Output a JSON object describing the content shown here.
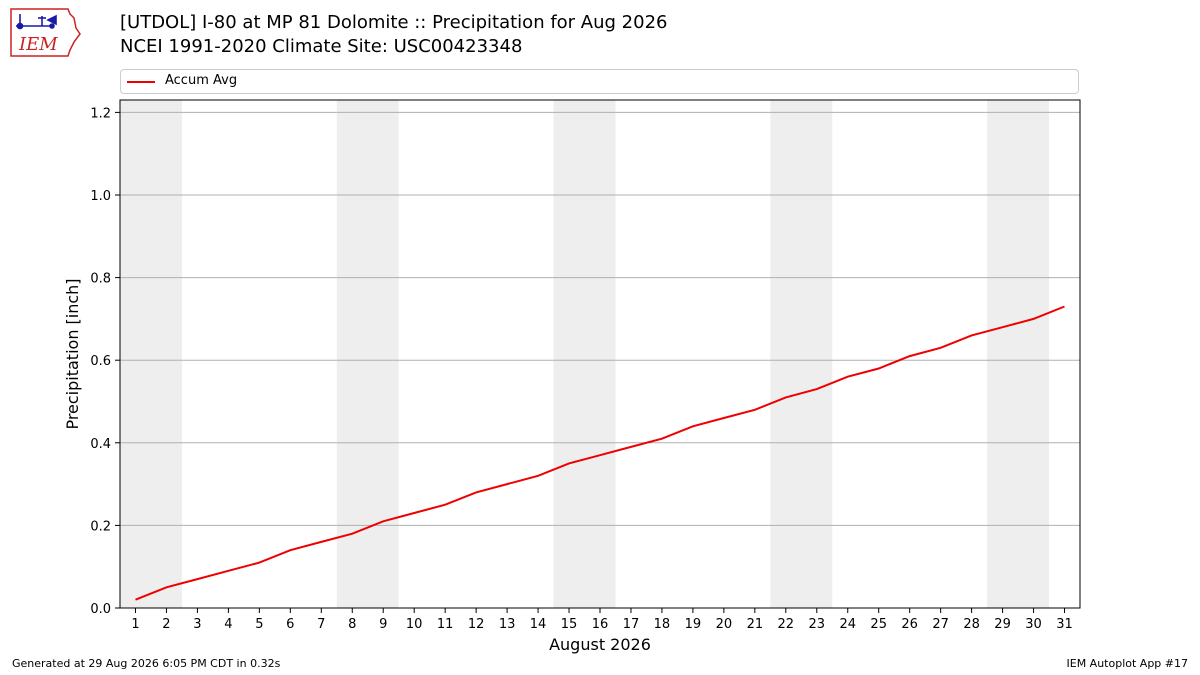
{
  "header": {
    "title_line1": "[UTDOL] I-80 at MP 81 Dolomite  :: Precipitation for Aug 2026",
    "title_line2": "NCEI 1991-2020 Climate Site: USC00423348",
    "logo_text": "IEM"
  },
  "footer": {
    "generated": "Generated at 29 Aug 2026 6:05 PM CDT in 0.32s",
    "app": "IEM Autoplot App #17"
  },
  "colors": {
    "series_line": "#ee0000",
    "weekend_band": "#eeeeee",
    "grid": "#b0b0b0",
    "logo_red": "#cc2222",
    "logo_blue": "#1a1aa6"
  },
  "chart_data": {
    "type": "line",
    "xlabel": "August 2026",
    "ylabel": "Precipitation [inch]",
    "x": [
      1,
      2,
      3,
      4,
      5,
      6,
      7,
      8,
      9,
      10,
      11,
      12,
      13,
      14,
      15,
      16,
      17,
      18,
      19,
      20,
      21,
      22,
      23,
      24,
      25,
      26,
      27,
      28,
      29,
      30,
      31
    ],
    "xlim": [
      0.5,
      31.5
    ],
    "ylim": [
      0.0,
      1.23
    ],
    "y_ticks": [
      0.0,
      0.2,
      0.4,
      0.6,
      0.8,
      1.0,
      1.2
    ],
    "y_tick_labels": [
      "0.0",
      "0.2",
      "0.4",
      "0.6",
      "0.8",
      "1.0",
      "1.2"
    ],
    "grid": "horizontal",
    "legend_position": "top",
    "weekend_bands": [
      [
        1,
        2
      ],
      [
        8,
        9
      ],
      [
        15,
        16
      ],
      [
        22,
        23
      ],
      [
        29,
        30
      ]
    ],
    "series": [
      {
        "name": "Accum Avg",
        "values": [
          0.02,
          0.05,
          0.07,
          0.09,
          0.11,
          0.14,
          0.16,
          0.18,
          0.21,
          0.23,
          0.25,
          0.28,
          0.3,
          0.32,
          0.35,
          0.37,
          0.39,
          0.41,
          0.44,
          0.46,
          0.48,
          0.51,
          0.53,
          0.56,
          0.58,
          0.61,
          0.63,
          0.66,
          0.68,
          0.7,
          0.73
        ]
      }
    ]
  }
}
